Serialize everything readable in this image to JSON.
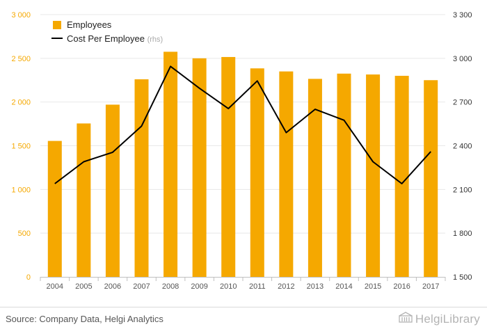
{
  "chart_data": {
    "type": "bar",
    "categories": [
      "2004",
      "2005",
      "2006",
      "2007",
      "2008",
      "2009",
      "2010",
      "2011",
      "2012",
      "2013",
      "2014",
      "2015",
      "2016",
      "2017"
    ],
    "series": [
      {
        "name": "Employees",
        "kind": "bar",
        "axis": "left",
        "color": "#f5a800",
        "values": [
          1555,
          1755,
          1970,
          2260,
          2575,
          2500,
          2515,
          2385,
          2350,
          2265,
          2325,
          2315,
          2300,
          2250
        ]
      },
      {
        "name": "Cost Per Employee",
        "kind": "line",
        "axis": "right",
        "color": "#000000",
        "values": [
          2140,
          2290,
          2355,
          2535,
          2945,
          2795,
          2655,
          2845,
          2490,
          2650,
          2575,
          2290,
          2140,
          2360
        ]
      }
    ],
    "legend_rhs_note": "(rhs)",
    "left_axis": {
      "min": 0,
      "max": 3000,
      "ticks": [
        0,
        500,
        1000,
        1500,
        2000,
        2500,
        3000
      ],
      "tick_labels": [
        "0",
        "500",
        "1 000",
        "1 500",
        "2 000",
        "2 500",
        "3 000"
      ],
      "color": "#f5a800"
    },
    "right_axis": {
      "min": 1500,
      "max": 3300,
      "ticks": [
        1500,
        1800,
        2100,
        2400,
        2700,
        3000,
        3300
      ],
      "tick_labels": [
        "1 500",
        "1 800",
        "2 100",
        "2 400",
        "2 700",
        "3 000",
        "3 300"
      ]
    },
    "grid": true,
    "legend_position": "top-left"
  },
  "footer": {
    "source": "Source: Company Data, Helgi Analytics",
    "brand": "HelgiLibrary",
    "brand_icon": "building-icon"
  }
}
